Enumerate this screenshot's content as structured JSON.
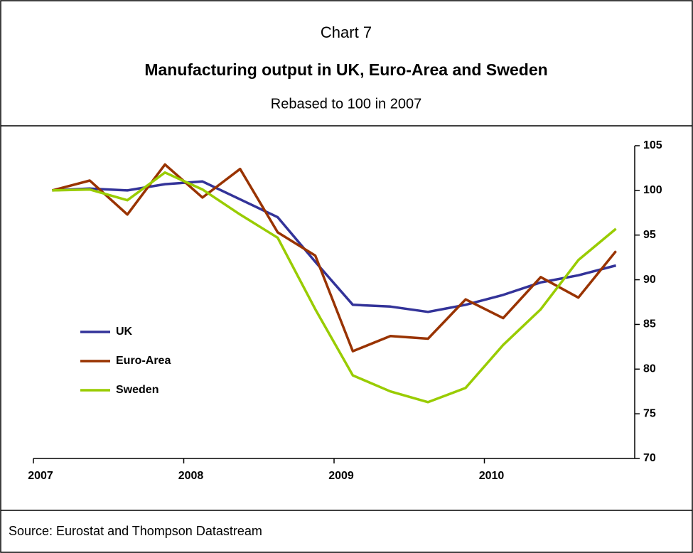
{
  "chart_data": {
    "type": "line",
    "title": "Chart 7",
    "subtitle": "Manufacturing output in UK, Euro-Area and Sweden",
    "note": "Rebased to 100 in 2007",
    "source": "Source: Eurostat and Thompson Datastream",
    "categories": [
      "2007",
      null,
      null,
      null,
      "2008",
      null,
      null,
      null,
      "2009",
      null,
      null,
      null,
      "2010",
      null,
      null,
      null
    ],
    "series": [
      {
        "name": "UK",
        "color": "#333399",
        "values": [
          100,
          100.2,
          100,
          100.7,
          101,
          99,
          97,
          92,
          87.2,
          87,
          86.4,
          87.2,
          88.3,
          89.7,
          90.5,
          91.6
        ]
      },
      {
        "name": "Euro-Area",
        "color": "#993300",
        "values": [
          100,
          101.1,
          97.3,
          102.9,
          99.2,
          102.4,
          95.3,
          92.7,
          82,
          83.7,
          83.4,
          87.8,
          85.7,
          90.3,
          88,
          93.2
        ]
      },
      {
        "name": "Sweden",
        "color": "#99cc00",
        "values": [
          100,
          100.1,
          98.9,
          102,
          100.1,
          97.3,
          94.7,
          86.7,
          79.3,
          77.5,
          76.3,
          77.9,
          82.7,
          86.7,
          92.2,
          95.7
        ]
      }
    ],
    "ylim": [
      70,
      105
    ],
    "yticks": [
      70,
      75,
      80,
      85,
      90,
      95,
      100,
      105
    ],
    "yaxis_side": "right",
    "legend": "left"
  }
}
